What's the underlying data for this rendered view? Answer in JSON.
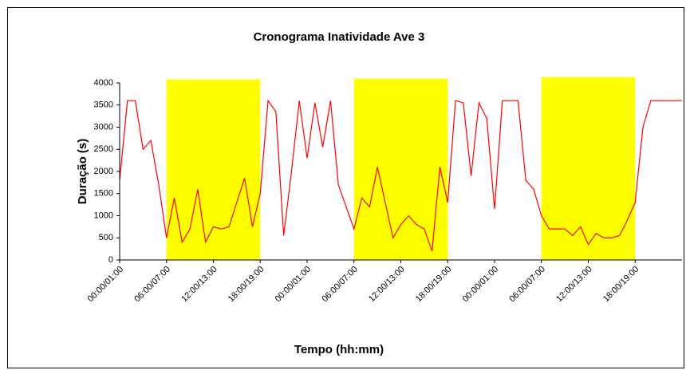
{
  "chart_data": {
    "type": "line",
    "title": "Cronograma Inatividade Ave 3",
    "x_label": "Tempo (hh:mm)",
    "y_label": "Duração (s)",
    "categories": [
      "00:00/01:00",
      null,
      null,
      null,
      null,
      null,
      "06:00/07:00",
      null,
      null,
      null,
      null,
      null,
      "12:00/13:00",
      null,
      null,
      null,
      null,
      null,
      "18:00/19:00",
      null,
      null,
      null,
      null,
      null,
      "00:00/01:00",
      null,
      null,
      null,
      null,
      null,
      "06:00/07:00",
      null,
      null,
      null,
      null,
      null,
      "12:00/13:00",
      null,
      null,
      null,
      null,
      null,
      "18:00/19:00",
      null,
      null,
      null,
      null,
      null,
      "00:00/01:00",
      null,
      null,
      null,
      null,
      null,
      "06:00/07:00",
      null,
      null,
      null,
      null,
      null,
      "12:00/13:00",
      null,
      null,
      null,
      null,
      null,
      "18:00/19:00",
      null,
      null,
      null,
      null,
      null,
      null
    ],
    "series": [
      {
        "color": "#ffff00",
        "style": "band",
        "values": [
          null,
          null,
          null,
          null,
          null,
          null,
          4080,
          4080,
          4080,
          4080,
          4080,
          4080,
          4080,
          4080,
          4080,
          4080,
          4080,
          4080,
          4080,
          null,
          null,
          null,
          null,
          null,
          null,
          null,
          null,
          null,
          null,
          null,
          4100,
          4100,
          4100,
          4100,
          4100,
          4100,
          4100,
          4100,
          4100,
          4100,
          4100,
          4100,
          4100,
          null,
          null,
          null,
          null,
          null,
          null,
          null,
          null,
          null,
          null,
          null,
          4130,
          4130,
          4130,
          4130,
          4130,
          4130,
          4130,
          4130,
          4130,
          4130,
          4130,
          4130,
          4130,
          null,
          null,
          null,
          null,
          null,
          null
        ]
      },
      {
        "color": "#ff0000",
        "style": "line",
        "values": [
          1800,
          3600,
          3600,
          2500,
          2700,
          1700,
          500,
          1400,
          400,
          700,
          1600,
          400,
          750,
          700,
          750,
          1300,
          1850,
          750,
          1500,
          3600,
          3350,
          550,
          2000,
          3600,
          2300,
          3550,
          2550,
          3600,
          1700,
          1200,
          700,
          1400,
          1200,
          2100,
          1300,
          500,
          800,
          1000,
          800,
          700,
          200,
          2100,
          1300,
          3600,
          3550,
          1900,
          3550,
          3200,
          1150,
          3600,
          3600,
          3600,
          1800,
          1600,
          1000,
          700,
          700,
          700,
          550,
          750,
          350,
          600,
          500,
          500,
          550,
          900,
          1300,
          3000,
          3600,
          3600,
          3600,
          3600,
          3600
        ]
      }
    ],
    "ylim": [
      0,
      4000
    ],
    "yticks": [
      0,
      500,
      1000,
      1500,
      2000,
      2500,
      3000,
      3500,
      4000
    ]
  }
}
